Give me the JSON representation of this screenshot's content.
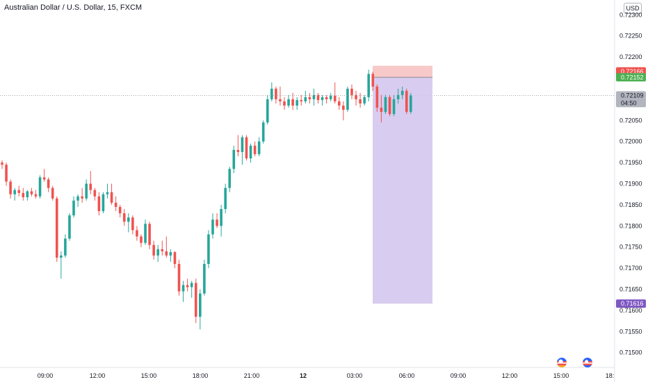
{
  "header": {
    "title": "Australian Dollar / U.S. Dollar, 15, FXCM",
    "currency_button": "USD"
  },
  "colors": {
    "up": "#26a69a",
    "down": "#ef5350",
    "stop_zone": "#f7c9c8",
    "target_zone": "#d4c8ee",
    "target_tag": "#7e57c2",
    "current_tag": "#b2b5be"
  },
  "icons": {
    "flag_left": "us-flag-icon",
    "flag_right": "us-flag-icon"
  },
  "chart_data": {
    "type": "candlestick",
    "x_tick_labels": [
      "09:00",
      "12:00",
      "15:00",
      "18:00",
      "21:00",
      "12",
      "03:00",
      "06:00",
      "09:00",
      "12:00",
      "15:00",
      "18:"
    ],
    "y_tick_labels": [
      "0.72300",
      "0.72250",
      "0.72200",
      "0.72100",
      "0.72050",
      "0.72000",
      "0.71950",
      "0.71900",
      "0.71850",
      "0.71800",
      "0.71750",
      "0.71700",
      "0.71650",
      "0.71600",
      "0.71550",
      "0.71500"
    ],
    "ylim": [
      0.71465,
      0.72335
    ],
    "price_tags": {
      "stop": "0.72166",
      "entry": "0.72152",
      "last": "0.72109",
      "countdown": "04:50",
      "target": "0.71616"
    },
    "ohlc": [
      [
        0.7195,
        0.71955,
        0.71935,
        0.71945
      ],
      [
        0.71945,
        0.7195,
        0.71895,
        0.71905
      ],
      [
        0.71905,
        0.7191,
        0.71865,
        0.71875
      ],
      [
        0.71875,
        0.7189,
        0.7186,
        0.71885
      ],
      [
        0.71885,
        0.71895,
        0.7187,
        0.71878
      ],
      [
        0.71878,
        0.7189,
        0.7186,
        0.71868
      ],
      [
        0.71868,
        0.71885,
        0.7186,
        0.71882
      ],
      [
        0.71882,
        0.7189,
        0.7187,
        0.71875
      ],
      [
        0.71875,
        0.71885,
        0.71865,
        0.7187
      ],
      [
        0.7187,
        0.7192,
        0.71865,
        0.71915
      ],
      [
        0.71915,
        0.71935,
        0.71905,
        0.7191
      ],
      [
        0.7191,
        0.71915,
        0.7188,
        0.7189
      ],
      [
        0.7189,
        0.71895,
        0.7186,
        0.71865
      ],
      [
        0.71865,
        0.7187,
        0.71715,
        0.71725
      ],
      [
        0.71725,
        0.7174,
        0.71675,
        0.7173
      ],
      [
        0.7173,
        0.7178,
        0.71725,
        0.7177
      ],
      [
        0.7177,
        0.7183,
        0.71765,
        0.71825
      ],
      [
        0.71825,
        0.7187,
        0.7182,
        0.7186
      ],
      [
        0.7186,
        0.71875,
        0.71845,
        0.7187
      ],
      [
        0.7187,
        0.7189,
        0.71855,
        0.71865
      ],
      [
        0.71865,
        0.7191,
        0.7186,
        0.719
      ],
      [
        0.719,
        0.7193,
        0.71875,
        0.71885
      ],
      [
        0.71885,
        0.7189,
        0.7186,
        0.7187
      ],
      [
        0.7187,
        0.7188,
        0.71825,
        0.71835
      ],
      [
        0.71835,
        0.7188,
        0.7183,
        0.71875
      ],
      [
        0.71875,
        0.719,
        0.71865,
        0.7188
      ],
      [
        0.7188,
        0.719,
        0.7185,
        0.71855
      ],
      [
        0.71855,
        0.7187,
        0.71835,
        0.71845
      ],
      [
        0.71845,
        0.7185,
        0.7182,
        0.7183
      ],
      [
        0.7183,
        0.7184,
        0.718,
        0.7181
      ],
      [
        0.7181,
        0.7183,
        0.71785,
        0.7182
      ],
      [
        0.7182,
        0.71825,
        0.7178,
        0.7179
      ],
      [
        0.7179,
        0.718,
        0.71765,
        0.71775
      ],
      [
        0.71775,
        0.7178,
        0.7175,
        0.7176
      ],
      [
        0.7176,
        0.71815,
        0.71755,
        0.71805
      ],
      [
        0.71805,
        0.7181,
        0.71745,
        0.71755
      ],
      [
        0.71755,
        0.71765,
        0.7172,
        0.7173
      ],
      [
        0.7173,
        0.71755,
        0.71715,
        0.71745
      ],
      [
        0.71745,
        0.71765,
        0.7173,
        0.7174
      ],
      [
        0.7174,
        0.71775,
        0.71725,
        0.7173
      ],
      [
        0.7173,
        0.71745,
        0.71715,
        0.71738
      ],
      [
        0.71738,
        0.7174,
        0.717,
        0.7171
      ],
      [
        0.7171,
        0.7172,
        0.71635,
        0.71645
      ],
      [
        0.71645,
        0.7167,
        0.7162,
        0.7166
      ],
      [
        0.7166,
        0.71675,
        0.71645,
        0.71655
      ],
      [
        0.71655,
        0.7167,
        0.7163,
        0.71665
      ],
      [
        0.71665,
        0.71675,
        0.7157,
        0.71585
      ],
      [
        0.71585,
        0.7165,
        0.71555,
        0.7164
      ],
      [
        0.7164,
        0.7172,
        0.71635,
        0.7171
      ],
      [
        0.7171,
        0.7179,
        0.717,
        0.7178
      ],
      [
        0.7178,
        0.7183,
        0.7177,
        0.71815
      ],
      [
        0.71815,
        0.7183,
        0.71795,
        0.718
      ],
      [
        0.718,
        0.7185,
        0.71775,
        0.7184
      ],
      [
        0.7184,
        0.719,
        0.7183,
        0.7189
      ],
      [
        0.7189,
        0.7194,
        0.7188,
        0.71935
      ],
      [
        0.71935,
        0.7199,
        0.71925,
        0.7198
      ],
      [
        0.7198,
        0.72015,
        0.71965,
        0.71975
      ],
      [
        0.71975,
        0.72015,
        0.71945,
        0.7201
      ],
      [
        0.7201,
        0.72015,
        0.71955,
        0.7196
      ],
      [
        0.7196,
        0.71995,
        0.7195,
        0.7199
      ],
      [
        0.7199,
        0.72,
        0.71965,
        0.7197
      ],
      [
        0.7197,
        0.7201,
        0.71965,
        0.72
      ],
      [
        0.72,
        0.7205,
        0.71995,
        0.72045
      ],
      [
        0.72045,
        0.7211,
        0.7204,
        0.721
      ],
      [
        0.721,
        0.7214,
        0.72095,
        0.72125
      ],
      [
        0.72125,
        0.7213,
        0.7209,
        0.721
      ],
      [
        0.721,
        0.7213,
        0.72085,
        0.72095
      ],
      [
        0.72095,
        0.72105,
        0.72075,
        0.72085
      ],
      [
        0.72085,
        0.7211,
        0.7208,
        0.721
      ],
      [
        0.721,
        0.72115,
        0.72075,
        0.72085
      ],
      [
        0.72085,
        0.72105,
        0.72075,
        0.72098
      ],
      [
        0.72098,
        0.7211,
        0.72085,
        0.72095
      ],
      [
        0.72095,
        0.7212,
        0.7209,
        0.72105
      ],
      [
        0.72105,
        0.72115,
        0.7209,
        0.721
      ],
      [
        0.721,
        0.72125,
        0.72085,
        0.7211
      ],
      [
        0.7211,
        0.72115,
        0.7209,
        0.72098
      ],
      [
        0.72098,
        0.7211,
        0.72085,
        0.72105
      ],
      [
        0.72105,
        0.7211,
        0.7209,
        0.721
      ],
      [
        0.721,
        0.72115,
        0.72095,
        0.72108
      ],
      [
        0.72108,
        0.7214,
        0.7209,
        0.72095
      ],
      [
        0.72095,
        0.72105,
        0.72075,
        0.72085
      ],
      [
        0.72085,
        0.72095,
        0.7205,
        0.72075
      ],
      [
        0.72075,
        0.7213,
        0.7207,
        0.72125
      ],
      [
        0.72125,
        0.72135,
        0.721,
        0.7211
      ],
      [
        0.7211,
        0.7212,
        0.72085,
        0.721
      ],
      [
        0.721,
        0.72115,
        0.7208,
        0.7209
      ],
      [
        0.7209,
        0.7211,
        0.72085,
        0.72105
      ],
      [
        0.72105,
        0.7217,
        0.72095,
        0.7216
      ],
      [
        0.7216,
        0.72165,
        0.7212,
        0.7213
      ],
      [
        0.7213,
        0.72135,
        0.7207,
        0.7208
      ],
      [
        0.7208,
        0.7211,
        0.72045,
        0.7207
      ],
      [
        0.7207,
        0.7211,
        0.72065,
        0.72105
      ],
      [
        0.72105,
        0.7211,
        0.7206,
        0.72065
      ],
      [
        0.72065,
        0.7211,
        0.7206,
        0.721
      ],
      [
        0.721,
        0.72125,
        0.7209,
        0.7211
      ],
      [
        0.7211,
        0.7213,
        0.721,
        0.7212
      ],
      [
        0.7212,
        0.72125,
        0.72065,
        0.7207
      ],
      [
        0.7207,
        0.72115,
        0.72065,
        0.72109
      ]
    ]
  }
}
